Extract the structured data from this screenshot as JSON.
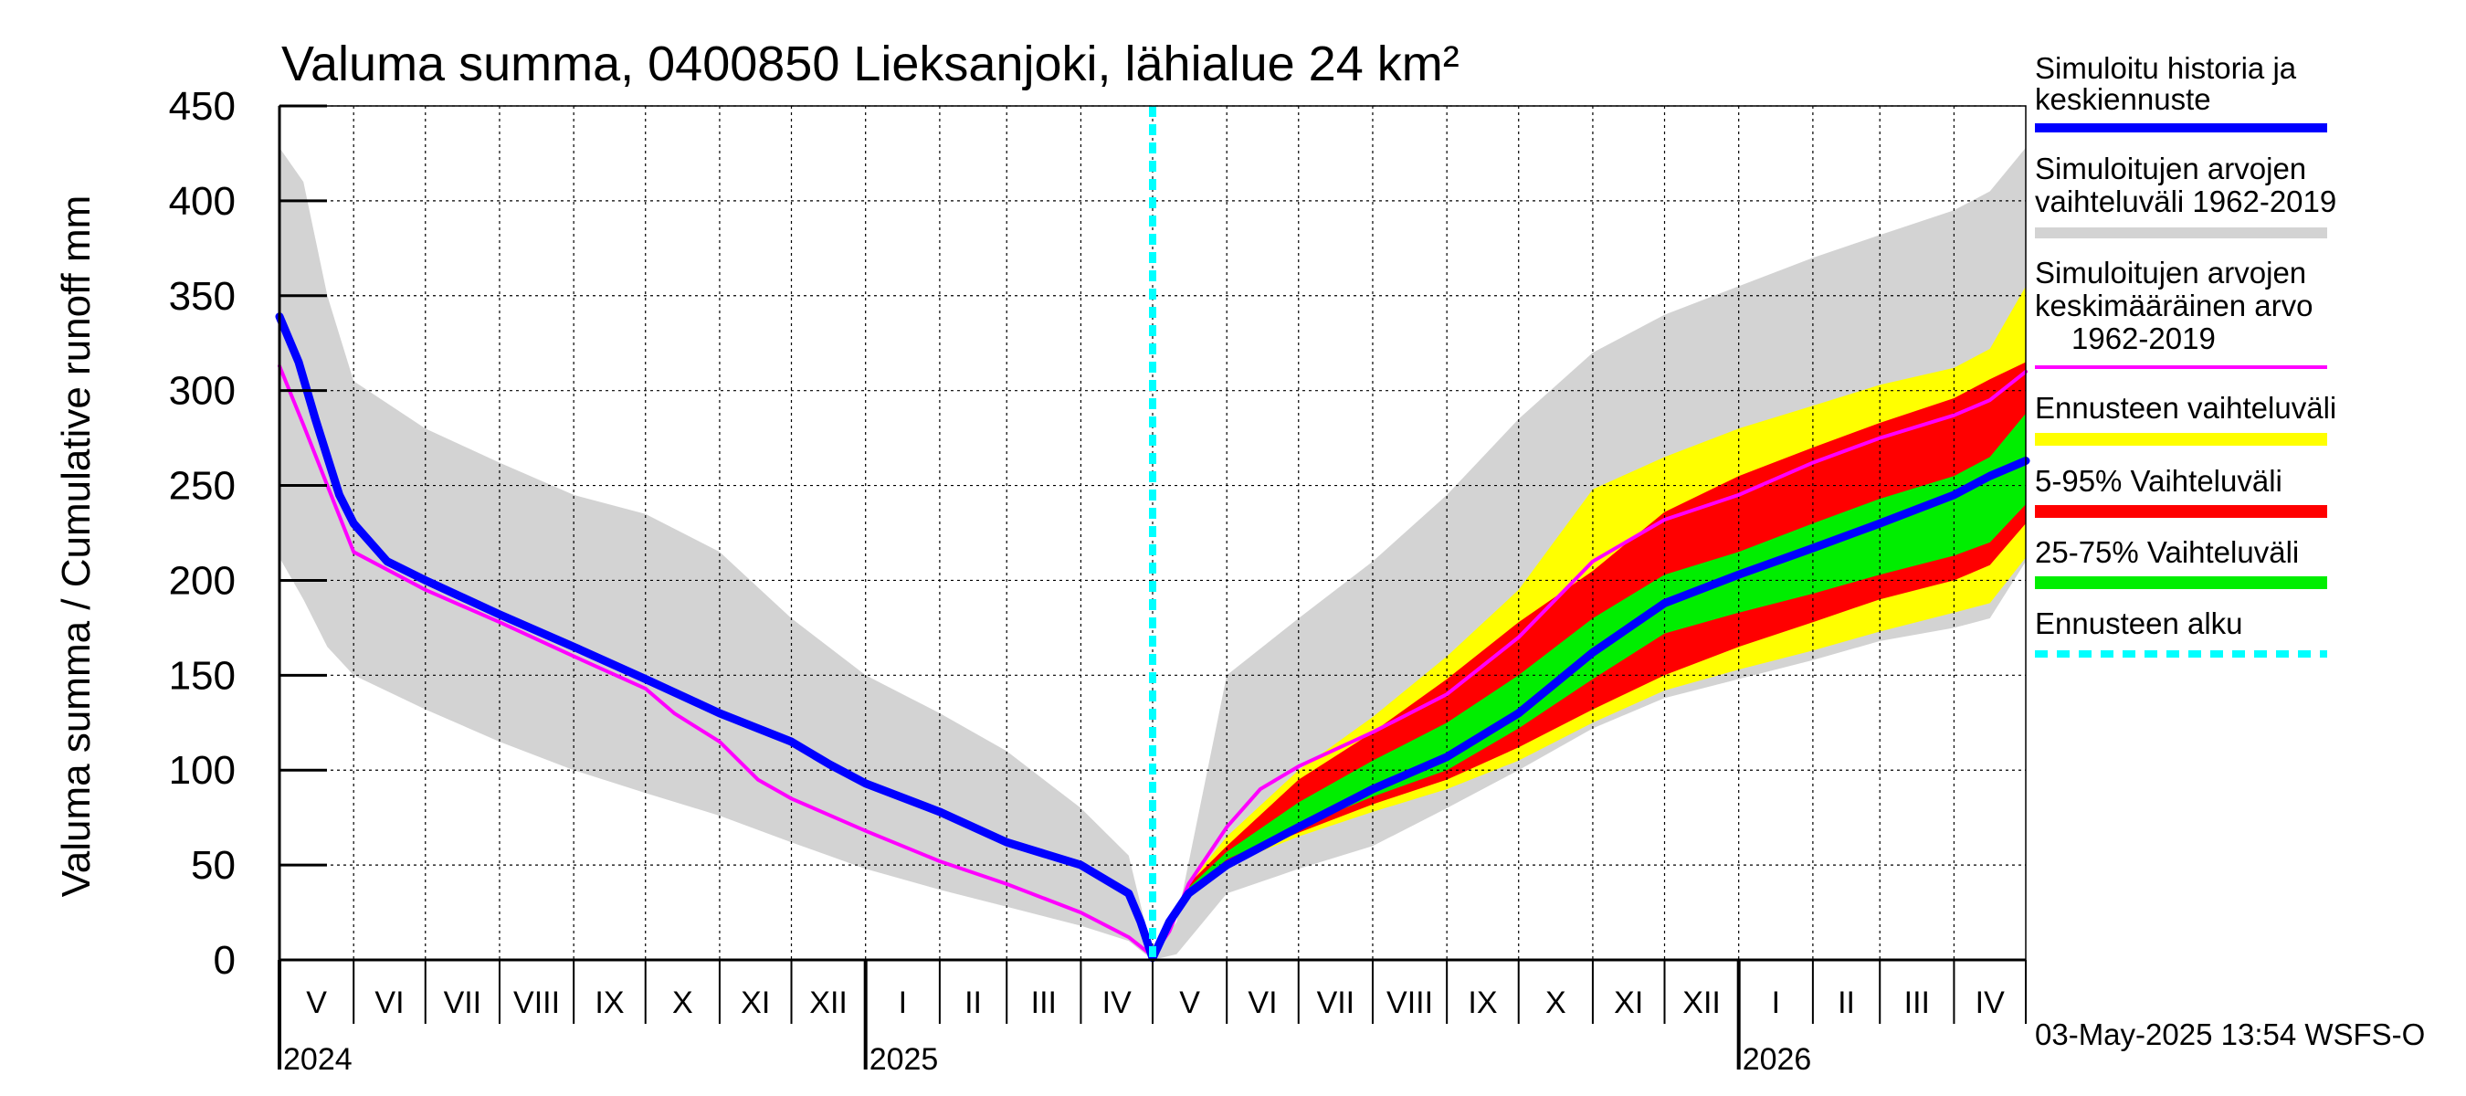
{
  "chart_data": {
    "type": "area",
    "title": "Valuma summa, 0400850 Lieksanjoki, lähialue 24 km²",
    "ylabel": "Valuma summa / Cumulative runoff     mm",
    "ylim": [
      0,
      450
    ],
    "yticks": [
      0,
      50,
      100,
      150,
      200,
      250,
      300,
      350,
      400,
      450
    ],
    "xlim_days": [
      0,
      730
    ],
    "forecast_start_day": 365,
    "months": [
      {
        "label": "V",
        "start": 0,
        "end": 31
      },
      {
        "label": "VI",
        "start": 31,
        "end": 61
      },
      {
        "label": "VII",
        "start": 61,
        "end": 92
      },
      {
        "label": "VIII",
        "start": 92,
        "end": 123
      },
      {
        "label": "IX",
        "start": 123,
        "end": 153
      },
      {
        "label": "X",
        "start": 153,
        "end": 184
      },
      {
        "label": "XI",
        "start": 184,
        "end": 214
      },
      {
        "label": "XII",
        "start": 214,
        "end": 245
      },
      {
        "label": "I",
        "start": 245,
        "end": 276
      },
      {
        "label": "II",
        "start": 276,
        "end": 304
      },
      {
        "label": "III",
        "start": 304,
        "end": 335
      },
      {
        "label": "IV",
        "start": 335,
        "end": 365
      },
      {
        "label": "V",
        "start": 365,
        "end": 396
      },
      {
        "label": "VI",
        "start": 396,
        "end": 426
      },
      {
        "label": "VII",
        "start": 426,
        "end": 457
      },
      {
        "label": "VIII",
        "start": 457,
        "end": 488
      },
      {
        "label": "IX",
        "start": 488,
        "end": 518
      },
      {
        "label": "X",
        "start": 518,
        "end": 549
      },
      {
        "label": "XI",
        "start": 549,
        "end": 579
      },
      {
        "label": "XII",
        "start": 579,
        "end": 610
      },
      {
        "label": "I",
        "start": 610,
        "end": 641
      },
      {
        "label": "II",
        "start": 641,
        "end": 669
      },
      {
        "label": "III",
        "start": 669,
        "end": 700
      },
      {
        "label": "IV",
        "start": 700,
        "end": 730
      }
    ],
    "years": [
      {
        "label": "2024",
        "day": 0
      },
      {
        "label": "2025",
        "day": 245
      },
      {
        "label": "2026",
        "day": 610
      }
    ],
    "series": [
      {
        "name": "Simuloitujen arvojen vaihteluväli 1962-2019",
        "kind": "band",
        "color": "#d3d3d3",
        "upper": [
          [
            0,
            428
          ],
          [
            10,
            410
          ],
          [
            20,
            350
          ],
          [
            31,
            305
          ],
          [
            61,
            280
          ],
          [
            92,
            262
          ],
          [
            123,
            245
          ],
          [
            153,
            235
          ],
          [
            184,
            215
          ],
          [
            214,
            180
          ],
          [
            245,
            150
          ],
          [
            276,
            130
          ],
          [
            304,
            110
          ],
          [
            335,
            80
          ],
          [
            355,
            55
          ],
          [
            365,
            3
          ],
          [
            375,
            20
          ],
          [
            396,
            150
          ],
          [
            426,
            180
          ],
          [
            457,
            210
          ],
          [
            488,
            245
          ],
          [
            518,
            285
          ],
          [
            549,
            320
          ],
          [
            579,
            340
          ],
          [
            610,
            355
          ],
          [
            641,
            370
          ],
          [
            669,
            382
          ],
          [
            700,
            395
          ],
          [
            715,
            405
          ],
          [
            730,
            428
          ]
        ],
        "lower": [
          [
            0,
            212
          ],
          [
            10,
            190
          ],
          [
            20,
            165
          ],
          [
            31,
            150
          ],
          [
            61,
            132
          ],
          [
            92,
            115
          ],
          [
            123,
            100
          ],
          [
            153,
            88
          ],
          [
            184,
            76
          ],
          [
            214,
            62
          ],
          [
            245,
            48
          ],
          [
            276,
            37
          ],
          [
            304,
            28
          ],
          [
            335,
            18
          ],
          [
            355,
            10
          ],
          [
            365,
            0
          ],
          [
            375,
            3
          ],
          [
            396,
            35
          ],
          [
            426,
            48
          ],
          [
            457,
            60
          ],
          [
            488,
            80
          ],
          [
            518,
            100
          ],
          [
            549,
            122
          ],
          [
            579,
            138
          ],
          [
            610,
            148
          ],
          [
            641,
            158
          ],
          [
            669,
            168
          ],
          [
            700,
            175
          ],
          [
            715,
            180
          ],
          [
            730,
            210
          ]
        ]
      },
      {
        "name": "Ennusteen vaihteluväli",
        "kind": "band",
        "color": "#ffff00",
        "upper": [
          [
            365,
            2
          ],
          [
            380,
            40
          ],
          [
            396,
            65
          ],
          [
            426,
            100
          ],
          [
            457,
            128
          ],
          [
            488,
            160
          ],
          [
            518,
            195
          ],
          [
            549,
            248
          ],
          [
            579,
            265
          ],
          [
            610,
            280
          ],
          [
            641,
            292
          ],
          [
            669,
            303
          ],
          [
            700,
            312
          ],
          [
            715,
            322
          ],
          [
            730,
            355
          ]
        ],
        "lower": [
          [
            365,
            2
          ],
          [
            380,
            35
          ],
          [
            396,
            50
          ],
          [
            426,
            65
          ],
          [
            457,
            78
          ],
          [
            488,
            90
          ],
          [
            518,
            105
          ],
          [
            549,
            125
          ],
          [
            579,
            142
          ],
          [
            610,
            153
          ],
          [
            641,
            163
          ],
          [
            669,
            173
          ],
          [
            700,
            183
          ],
          [
            715,
            188
          ],
          [
            730,
            212
          ]
        ]
      },
      {
        "name": "5-95% Vaihteluväli",
        "kind": "band",
        "color": "#ff0000",
        "upper": [
          [
            365,
            2
          ],
          [
            380,
            40
          ],
          [
            396,
            60
          ],
          [
            426,
            95
          ],
          [
            457,
            120
          ],
          [
            488,
            148
          ],
          [
            518,
            178
          ],
          [
            549,
            205
          ],
          [
            579,
            236
          ],
          [
            610,
            255
          ],
          [
            641,
            270
          ],
          [
            669,
            283
          ],
          [
            700,
            296
          ],
          [
            715,
            306
          ],
          [
            730,
            315
          ]
        ],
        "lower": [
          [
            365,
            2
          ],
          [
            380,
            35
          ],
          [
            396,
            52
          ],
          [
            426,
            67
          ],
          [
            457,
            82
          ],
          [
            488,
            95
          ],
          [
            518,
            112
          ],
          [
            549,
            132
          ],
          [
            579,
            150
          ],
          [
            610,
            165
          ],
          [
            641,
            178
          ],
          [
            669,
            190
          ],
          [
            700,
            200
          ],
          [
            715,
            208
          ],
          [
            730,
            230
          ]
        ]
      },
      {
        "name": "25-75% Vaihteluväli",
        "kind": "band",
        "color": "#00ee00",
        "upper": [
          [
            365,
            2
          ],
          [
            380,
            38
          ],
          [
            396,
            57
          ],
          [
            426,
            83
          ],
          [
            457,
            105
          ],
          [
            488,
            125
          ],
          [
            518,
            150
          ],
          [
            549,
            180
          ],
          [
            579,
            203
          ],
          [
            610,
            215
          ],
          [
            641,
            230
          ],
          [
            669,
            243
          ],
          [
            700,
            255
          ],
          [
            715,
            265
          ],
          [
            730,
            288
          ]
        ],
        "lower": [
          [
            365,
            2
          ],
          [
            380,
            36
          ],
          [
            396,
            53
          ],
          [
            426,
            70
          ],
          [
            457,
            86
          ],
          [
            488,
            100
          ],
          [
            518,
            122
          ],
          [
            549,
            148
          ],
          [
            579,
            172
          ],
          [
            610,
            183
          ],
          [
            641,
            193
          ],
          [
            669,
            203
          ],
          [
            700,
            213
          ],
          [
            715,
            220
          ],
          [
            730,
            240
          ]
        ]
      },
      {
        "name": "Simuloitujen arvojen keskimääräinen arvo 1962-2019",
        "kind": "line",
        "color": "#ff00ff",
        "width": 4,
        "points": [
          [
            0,
            313
          ],
          [
            10,
            282
          ],
          [
            20,
            250
          ],
          [
            31,
            215
          ],
          [
            61,
            195
          ],
          [
            92,
            178
          ],
          [
            123,
            160
          ],
          [
            153,
            143
          ],
          [
            165,
            130
          ],
          [
            184,
            115
          ],
          [
            200,
            95
          ],
          [
            214,
            85
          ],
          [
            245,
            68
          ],
          [
            276,
            52
          ],
          [
            304,
            40
          ],
          [
            335,
            25
          ],
          [
            355,
            12
          ],
          [
            365,
            2
          ],
          [
            372,
            15
          ],
          [
            380,
            40
          ],
          [
            396,
            70
          ],
          [
            410,
            90
          ],
          [
            426,
            102
          ],
          [
            457,
            120
          ],
          [
            488,
            140
          ],
          [
            518,
            170
          ],
          [
            549,
            210
          ],
          [
            579,
            232
          ],
          [
            610,
            245
          ],
          [
            641,
            262
          ],
          [
            669,
            275
          ],
          [
            700,
            287
          ],
          [
            715,
            295
          ],
          [
            730,
            310
          ]
        ]
      },
      {
        "name": "Simuloitu historia ja keskiennuste",
        "kind": "line",
        "color": "#0000ff",
        "width": 9,
        "points": [
          [
            0,
            339
          ],
          [
            8,
            315
          ],
          [
            15,
            285
          ],
          [
            25,
            245
          ],
          [
            31,
            230
          ],
          [
            45,
            210
          ],
          [
            61,
            200
          ],
          [
            92,
            182
          ],
          [
            123,
            165
          ],
          [
            153,
            148
          ],
          [
            184,
            130
          ],
          [
            214,
            115
          ],
          [
            230,
            103
          ],
          [
            245,
            93
          ],
          [
            276,
            78
          ],
          [
            304,
            62
          ],
          [
            335,
            50
          ],
          [
            355,
            35
          ],
          [
            360,
            20
          ],
          [
            365,
            1
          ],
          [
            372,
            20
          ],
          [
            380,
            35
          ],
          [
            396,
            50
          ],
          [
            426,
            70
          ],
          [
            457,
            90
          ],
          [
            488,
            107
          ],
          [
            518,
            130
          ],
          [
            549,
            162
          ],
          [
            579,
            188
          ],
          [
            610,
            203
          ],
          [
            641,
            217
          ],
          [
            669,
            230
          ],
          [
            700,
            245
          ],
          [
            715,
            255
          ],
          [
            730,
            263
          ]
        ]
      }
    ],
    "legend": [
      {
        "label": "Simuloitu historia ja keskiennuste",
        "color": "#0000ff",
        "style": "line"
      },
      {
        "label": "Simuloitujen arvojen vaihteluväli 1962-2019",
        "color": "#d3d3d3",
        "style": "band"
      },
      {
        "label": "Simuloitujen arvojen keskimääräinen arvo 1962-2019",
        "color": "#ff00ff",
        "style": "thin"
      },
      {
        "label": "Ennusteen vaihteluväli",
        "color": "#ffff00",
        "style": "band"
      },
      {
        "label": "5-95% Vaihteluväli",
        "color": "#ff0000",
        "style": "band"
      },
      {
        "label": "25-75% Vaihteluväli",
        "color": "#00ee00",
        "style": "band"
      },
      {
        "label": "Ennusteen alku",
        "color": "#00ffff",
        "style": "dashed"
      }
    ],
    "legend_text": {
      "l1a": "Simuloitu historia ja",
      "l1b": "keskiennuste",
      "l2a": "Simuloitujen arvojen",
      "l2b": "vaihteluväli 1962-2019",
      "l3a": "Simuloitujen arvojen",
      "l3b": "keskimääräinen arvo",
      "l3c": "1962-2019",
      "l4": "Ennusteen vaihteluväli",
      "l5": "5-95% Vaihteluväli",
      "l6": "25-75% Vaihteluväli",
      "l7": "Ennusteen alku"
    },
    "footer": "03-May-2025 13:54 WSFS-O"
  }
}
